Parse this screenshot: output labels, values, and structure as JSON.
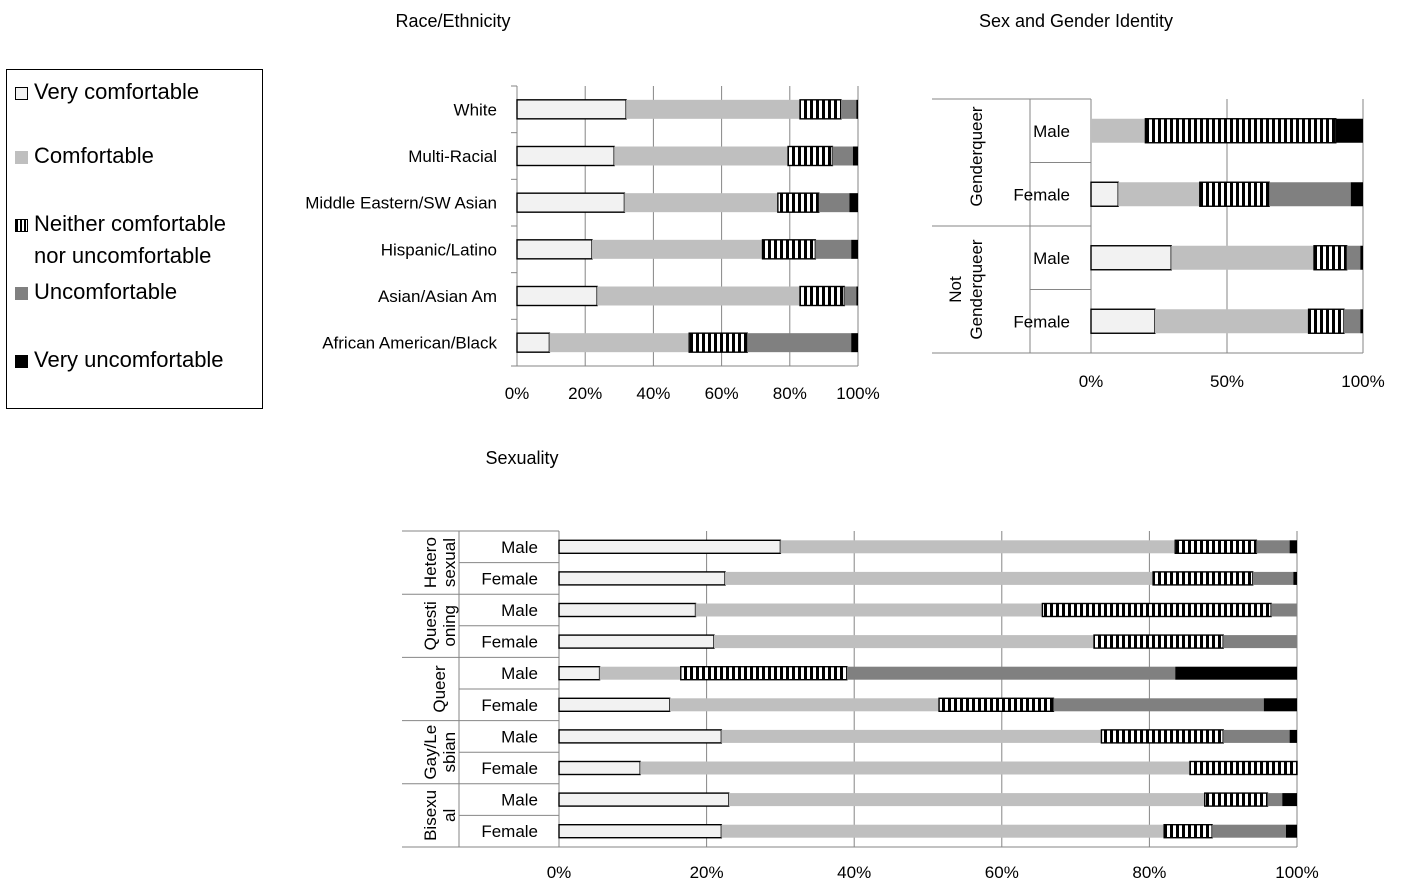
{
  "legend": {
    "items": [
      {
        "key": "vc",
        "label": "Very comfortable"
      },
      {
        "key": "c",
        "label": "Comfortable"
      },
      {
        "key": "n",
        "label": "Neither comfortable\nnor uncomfortable"
      },
      {
        "key": "u",
        "label": "Uncomfortable"
      },
      {
        "key": "vu",
        "label": "Very uncomfortable"
      }
    ]
  },
  "colors": {
    "very_comfortable": "#f2f2f2",
    "comfortable": "#bfbfbf",
    "neither_bg": "#ffffff",
    "neither_stripe": "#000000",
    "uncomfortable": "#808080",
    "very_uncomfortable": "#000000",
    "grid": "#868686"
  },
  "chart_data": [
    {
      "id": "race",
      "type": "bar",
      "stacked": "percent",
      "orientation": "horizontal",
      "title": "Race/Ethnicity",
      "xlim": [
        0,
        100
      ],
      "xticks": [
        "0%",
        "20%",
        "40%",
        "60%",
        "80%",
        "100%"
      ],
      "categories": [
        "White",
        "Multi-Racial",
        "Middle Eastern/SW Asian",
        "Hispanic/Latino",
        "Asian/Asian Am",
        "African American/Black"
      ],
      "series": [
        {
          "name": "Very comfortable",
          "values": [
            32,
            28.5,
            31.5,
            22,
            23.5,
            9.5
          ]
        },
        {
          "name": "Comfortable",
          "values": [
            51,
            51,
            45,
            50,
            59.5,
            41
          ]
        },
        {
          "name": "Neither comfortable nor uncomfortable",
          "values": [
            12,
            13,
            12,
            15.5,
            13,
            17
          ]
        },
        {
          "name": "Uncomfortable",
          "values": [
            4.5,
            6,
            9,
            10.5,
            3.5,
            30.5
          ]
        },
        {
          "name": "Very uncomfortable",
          "values": [
            0.5,
            1.5,
            2.5,
            2,
            0.5,
            2
          ]
        }
      ]
    },
    {
      "id": "gender",
      "type": "bar",
      "stacked": "percent",
      "orientation": "horizontal",
      "title": "Sex and Gender Identity",
      "xlim": [
        0,
        100
      ],
      "xticks": [
        "0%",
        "50%",
        "100%"
      ],
      "groups": [
        {
          "label": "Genderqueer",
          "categories": [
            "Male",
            "Female"
          ]
        },
        {
          "label": "Not Genderqueer",
          "categories": [
            "Male",
            "Female"
          ]
        }
      ],
      "series": [
        {
          "name": "Very comfortable",
          "values": [
            0,
            10,
            29.5,
            23.5
          ]
        },
        {
          "name": "Comfortable",
          "values": [
            20,
            30,
            52.5,
            56.5
          ]
        },
        {
          "name": "Neither comfortable nor uncomfortable",
          "values": [
            70,
            25.5,
            12,
            13
          ]
        },
        {
          "name": "Uncomfortable",
          "values": [
            0,
            30,
            5,
            6
          ]
        },
        {
          "name": "Very uncomfortable",
          "values": [
            10,
            4.5,
            1,
            1
          ]
        }
      ]
    },
    {
      "id": "sexuality",
      "type": "bar",
      "stacked": "percent",
      "orientation": "horizontal",
      "title": "Sexuality",
      "xlim": [
        0,
        100
      ],
      "xticks": [
        "0%",
        "20%",
        "40%",
        "60%",
        "80%",
        "100%"
      ],
      "groups": [
        {
          "label": "Hetero sexual",
          "lines": [
            "Hetero",
            "sexual"
          ],
          "categories": [
            "Male",
            "Female"
          ]
        },
        {
          "label": "Questi oning",
          "lines": [
            "Questi",
            "oning"
          ],
          "categories": [
            "Male",
            "Female"
          ]
        },
        {
          "label": "Queer",
          "lines": [
            "Queer"
          ],
          "categories": [
            "Male",
            "Female"
          ]
        },
        {
          "label": "Gay/Le sbian",
          "lines": [
            "Gay/Le",
            "sbian"
          ],
          "categories": [
            "Male",
            "Female"
          ]
        },
        {
          "label": "Bisexu al",
          "lines": [
            "Bisexu",
            "al"
          ],
          "categories": [
            "Male",
            "Female"
          ]
        }
      ],
      "series": [
        {
          "name": "Very comfortable",
          "values": [
            30,
            22.5,
            18.5,
            21,
            5.5,
            15,
            22,
            11,
            23,
            22
          ]
        },
        {
          "name": "Comfortable",
          "values": [
            53.5,
            58,
            47,
            51.5,
            11,
            36.5,
            51.5,
            74.5,
            64.5,
            60
          ]
        },
        {
          "name": "Neither comfortable nor uncomfortable",
          "values": [
            11,
            13.5,
            31,
            17.5,
            22.5,
            15.5,
            16.5,
            14.5,
            8.5,
            6.5
          ]
        },
        {
          "name": "Uncomfortable",
          "values": [
            4.5,
            5.5,
            3.5,
            10,
            44.5,
            28.5,
            9,
            0,
            2,
            10
          ]
        },
        {
          "name": "Very uncomfortable",
          "values": [
            1,
            0.5,
            0,
            0,
            16.5,
            4.5,
            1,
            0,
            2,
            1.5
          ]
        }
      ]
    }
  ]
}
